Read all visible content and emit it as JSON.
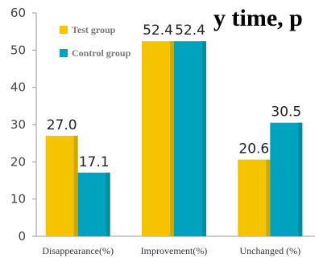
{
  "partial_heading": "y time, p",
  "chart_data": {
    "type": "bar",
    "categories": [
      "Disappearance(%)",
      "Improvement(%)",
      "Unchanged (%)"
    ],
    "series": [
      {
        "name": "Test group",
        "values": [
          27.0,
          52.4,
          20.6
        ],
        "labels": [
          "27.0",
          "52.4",
          "20.6"
        ]
      },
      {
        "name": "Control group",
        "values": [
          17.1,
          52.4,
          30.5
        ],
        "labels": [
          "17.1",
          "52.4",
          "30.5"
        ]
      }
    ],
    "ylim": [
      0,
      60
    ],
    "yticks": [
      0,
      10,
      20,
      30,
      40,
      50,
      60
    ],
    "legend_position": "top-left",
    "grid": false,
    "colors": {
      "series": [
        "#F5C400",
        "#00A3BE"
      ],
      "series_dark": [
        "#B58F00",
        "#007A8E"
      ],
      "axis": "#9A9A9A"
    }
  }
}
